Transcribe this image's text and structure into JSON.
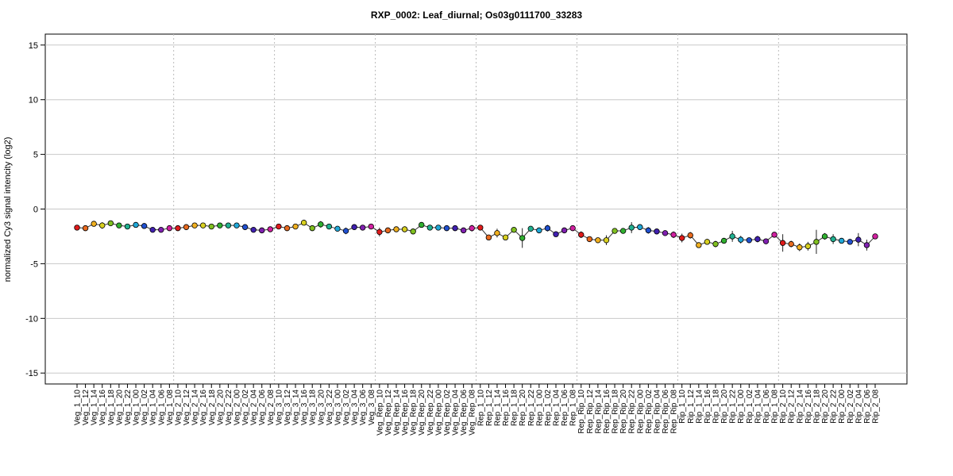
{
  "chart_data": {
    "type": "line",
    "title": "RXP_0002: Leaf_diurnal; Os03g0111700_33283",
    "ylabel": "normalized Cy3 signal intencity (log2)",
    "xlabel": "",
    "ylim": [
      -16,
      16
    ],
    "yticks": [
      -15,
      -10,
      -5,
      0,
      5,
      10,
      15
    ],
    "grid": true,
    "line_color": "#333333",
    "categories": [
      "Veg_1_10",
      "Veg_1_12",
      "Veg_1_14",
      "Veg_1_16",
      "Veg_1_18",
      "Veg_1_20",
      "Veg_1_22",
      "Veg_1_00",
      "Veg_1_02",
      "Veg_1_04",
      "Veg_1_06",
      "Veg_1_08",
      "Veg_2_10",
      "Veg_2_12",
      "Veg_2_14",
      "Veg_2_16",
      "Veg_2_18",
      "Veg_2_20",
      "Veg_2_22",
      "Veg_2_00",
      "Veg_2_02",
      "Veg_2_04",
      "Veg_2_06",
      "Veg_2_08",
      "Veg_3_10",
      "Veg_3_12",
      "Veg_3_14",
      "Veg_3_16",
      "Veg_3_18",
      "Veg_3_20",
      "Veg_3_22",
      "Veg_3_00",
      "Veg_3_02",
      "Veg_3_04",
      "Veg_3_06",
      "Veg_3_08",
      "Veg_Rep_10",
      "Veg_Rep_12",
      "Veg_Rep_14",
      "Veg_Rep_16",
      "Veg_Rep_18",
      "Veg_Rep_20",
      "Veg_Rep_22",
      "Veg_Rep_00",
      "Veg_Rep_02",
      "Veg_Rep_04",
      "Veg_Rep_06",
      "Veg_Rep_08",
      "Rep_1_10",
      "Rep_1_12",
      "Rep_1_14",
      "Rep_1_16",
      "Rep_1_18",
      "Rep_1_20",
      "Rep_1_22",
      "Rep_1_00",
      "Rep_1_02",
      "Rep_1_04",
      "Rep_1_06",
      "Rep_1_08",
      "Rep_Rip_10",
      "Rep_Rip_12",
      "Rep_Rip_14",
      "Rep_Rip_16",
      "Rep_Rip_18",
      "Rep_Rip_20",
      "Rep_Rip_22",
      "Rep_Rip_00",
      "Rep_Rip_02",
      "Rep_Rip_04",
      "Rep_Rip_06",
      "Rep_Rip_08",
      "Rip_1_10",
      "Rip_1_12",
      "Rip_1_14",
      "Rip_1_16",
      "Rip_1_18",
      "Rip_1_20",
      "Rip_1_22",
      "Rip_1_00",
      "Rip_1_02",
      "Rip_1_04",
      "Rip_1_06",
      "Rip_1_08",
      "Rip_2_10",
      "Rip_2_12",
      "Rip_2_14",
      "Rip_2_16",
      "Rip_2_18",
      "Rip_2_20",
      "Rip_2_22",
      "Rip_2_00",
      "Rip_2_02",
      "Rip_2_04",
      "Rip_2_06",
      "Rip_2_08"
    ],
    "values": [
      -1.7,
      -1.75,
      -1.35,
      -1.5,
      -1.3,
      -1.5,
      -1.6,
      -1.45,
      -1.55,
      -1.9,
      -1.9,
      -1.75,
      -1.75,
      -1.65,
      -1.5,
      -1.5,
      -1.6,
      -1.5,
      -1.5,
      -1.5,
      -1.65,
      -1.9,
      -1.95,
      -1.85,
      -1.6,
      -1.75,
      -1.6,
      -1.25,
      -1.75,
      -1.4,
      -1.6,
      -1.8,
      -2.0,
      -1.65,
      -1.7,
      -1.6,
      -2.1,
      -1.95,
      -1.85,
      -1.85,
      -2.05,
      -1.45,
      -1.7,
      -1.7,
      -1.75,
      -1.75,
      -1.95,
      -1.75,
      -1.7,
      -2.6,
      -2.2,
      -2.6,
      -1.9,
      -2.65,
      -1.8,
      -1.95,
      -1.75,
      -2.3,
      -1.95,
      -1.75,
      -2.35,
      -2.75,
      -2.85,
      -2.85,
      -2.0,
      -2.0,
      -1.7,
      -1.65,
      -1.95,
      -2.05,
      -2.2,
      -2.35,
      -2.65,
      -2.4,
      -3.3,
      -3.0,
      -3.2,
      -2.9,
      -2.5,
      -2.8,
      -2.85,
      -2.75,
      -2.95,
      -2.35,
      -3.1,
      -3.2,
      -3.5,
      -3.4,
      -3.0,
      -2.5,
      -2.75,
      -2.9,
      -3.0,
      -2.8,
      -3.3,
      -2.5
    ],
    "errors": [
      0.1,
      0.1,
      0.15,
      0.3,
      0.2,
      0.1,
      0.15,
      0.1,
      0.1,
      0.15,
      0.2,
      0.1,
      0.15,
      0.1,
      0.15,
      0.1,
      0.1,
      0.1,
      0.1,
      0.1,
      0.1,
      0.1,
      0.1,
      0.1,
      0.25,
      0.1,
      0.1,
      0.1,
      0.15,
      0.3,
      0.1,
      0.1,
      0.3,
      0.15,
      0.15,
      0.1,
      0.4,
      0.15,
      0.15,
      0.1,
      0.2,
      0.1,
      0.1,
      0.1,
      0.1,
      0.1,
      0.1,
      0.3,
      0.1,
      0.2,
      0.4,
      0.15,
      0.15,
      0.9,
      0.1,
      0.15,
      0.3,
      0.15,
      0.2,
      0.15,
      0.3,
      0.15,
      0.1,
      0.45,
      0.2,
      0.15,
      0.5,
      0.1,
      0.3,
      0.15,
      0.1,
      0.3,
      0.4,
      0.3,
      0.1,
      0.2,
      0.3,
      0.2,
      0.5,
      0.35,
      0.2,
      0.3,
      0.1,
      0.2,
      0.8,
      0.3,
      0.35,
      0.4,
      1.1,
      0.3,
      0.45,
      0.15,
      0.1,
      0.6,
      0.5,
      0.15
    ],
    "point_colors": [
      "#e01b1b",
      "#e86a1f",
      "#f0b020",
      "#d8d020",
      "#80c020",
      "#30b030",
      "#20b090",
      "#20a8d8",
      "#2050d0",
      "#4020b0",
      "#8020b0",
      "#d020a0",
      "#e01b1b",
      "#e86a1f",
      "#f0b020",
      "#d8d020",
      "#80c020",
      "#30b030",
      "#20b090",
      "#20a8d8",
      "#2050d0",
      "#4020b0",
      "#8020b0",
      "#d020a0",
      "#e01b1b",
      "#e86a1f",
      "#f0b020",
      "#d8d020",
      "#80c020",
      "#30b030",
      "#20b090",
      "#20a8d8",
      "#2050d0",
      "#4020b0",
      "#8020b0",
      "#d020a0",
      "#e01b1b",
      "#e86a1f",
      "#f0b020",
      "#d8d020",
      "#80c020",
      "#30b030",
      "#20b090",
      "#20a8d8",
      "#2050d0",
      "#4020b0",
      "#8020b0",
      "#d020a0",
      "#e01b1b",
      "#e86a1f",
      "#f0b020",
      "#d8d020",
      "#80c020",
      "#30b030",
      "#20b090",
      "#20a8d8",
      "#2050d0",
      "#4020b0",
      "#8020b0",
      "#d020a0",
      "#e01b1b",
      "#e86a1f",
      "#f0b020",
      "#d8d020",
      "#80c020",
      "#30b030",
      "#20b090",
      "#20a8d8",
      "#2050d0",
      "#4020b0",
      "#8020b0",
      "#d020a0",
      "#e01b1b",
      "#e86a1f",
      "#f0b020",
      "#d8d020",
      "#80c020",
      "#30b030",
      "#20b090",
      "#20a8d8",
      "#2050d0",
      "#4020b0",
      "#8020b0",
      "#d020a0",
      "#e01b1b",
      "#e86a1f",
      "#f0b020",
      "#d8d020",
      "#80c020",
      "#30b030",
      "#20b090",
      "#20a8d8",
      "#2050d0",
      "#4020b0",
      "#8020b0",
      "#d020a0"
    ],
    "group_separators_after_index": [
      11,
      23,
      35,
      47,
      59,
      71,
      83
    ]
  }
}
